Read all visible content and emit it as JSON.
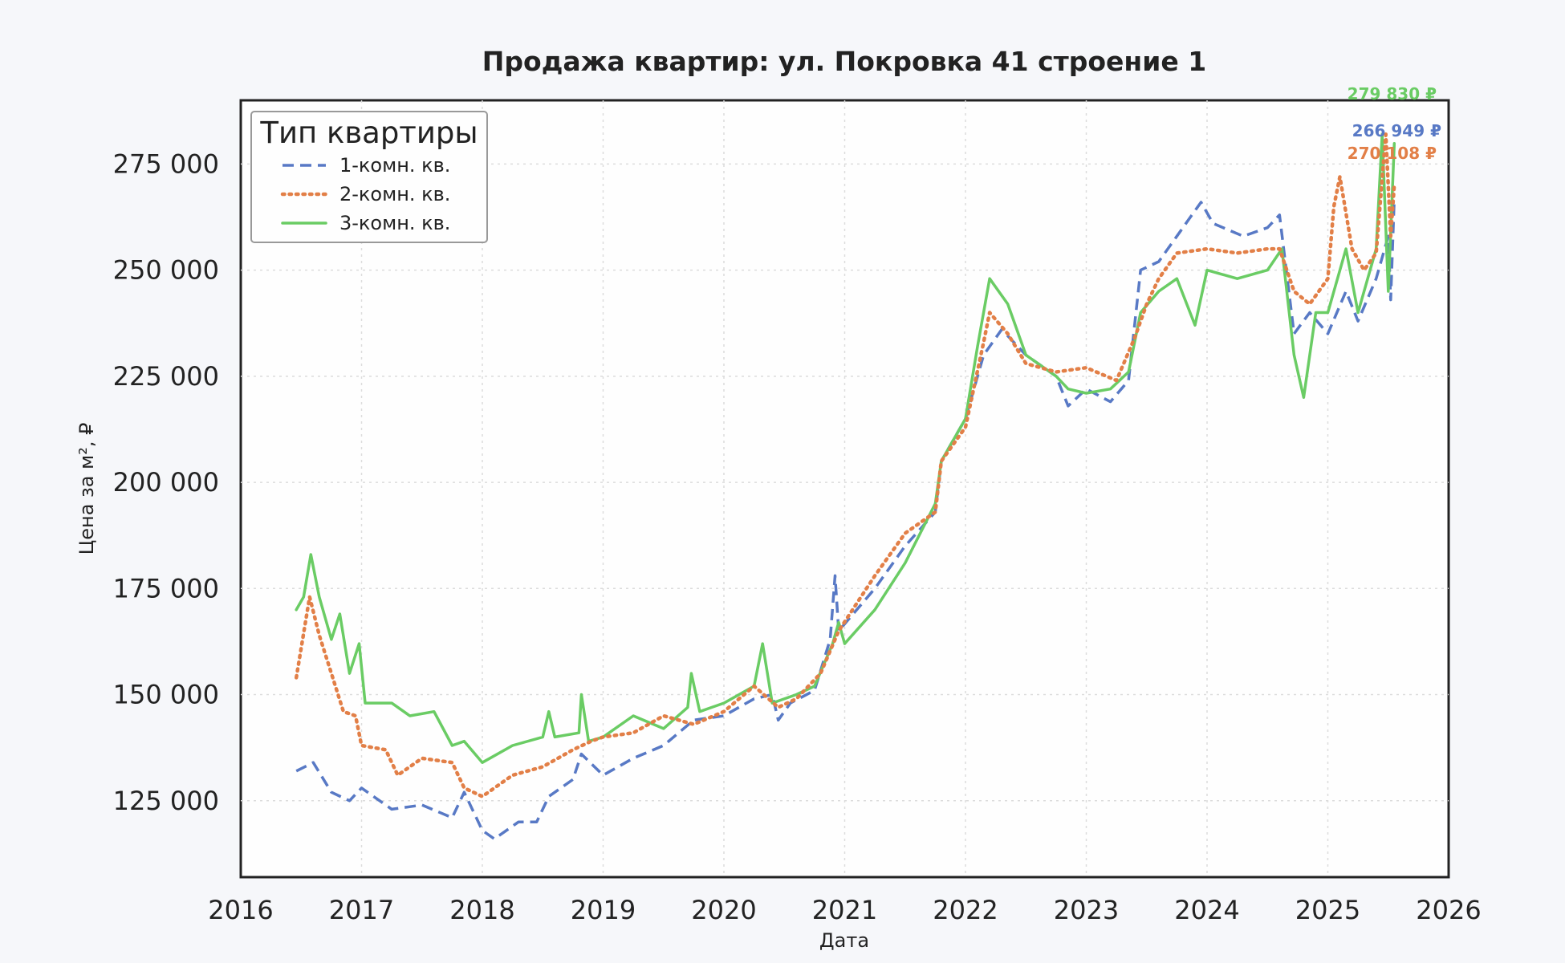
{
  "chart_data": {
    "type": "line",
    "title": "Продажа квартир: ул. Покровка 41 строение 1",
    "xlabel": "Дата",
    "ylabel": "Цена за м², ₽",
    "xlim": [
      2016,
      2026
    ],
    "ylim": [
      107000,
      290000
    ],
    "xticks": [
      2016,
      2017,
      2018,
      2019,
      2020,
      2021,
      2022,
      2023,
      2024,
      2025,
      2026
    ],
    "xtick_labels": [
      "2016",
      "2017",
      "2018",
      "2019",
      "2020",
      "2021",
      "2022",
      "2023",
      "2024",
      "2025",
      "2026"
    ],
    "yticks": [
      125000,
      150000,
      175000,
      200000,
      225000,
      250000,
      275000
    ],
    "ytick_labels": [
      "125 000",
      "150 000",
      "175 000",
      "200 000",
      "225 000",
      "250 000",
      "275 000"
    ],
    "grid": true,
    "legend": {
      "title": "Тип квартиры",
      "position": "top-left"
    },
    "series": [
      {
        "name": "1-комн. кв.",
        "color": "#5879c5",
        "style": "dashed",
        "end_label": "266 949 ₽",
        "points": [
          [
            2016.46,
            132000
          ],
          [
            2016.6,
            134000
          ],
          [
            2016.75,
            127000
          ],
          [
            2016.9,
            125000
          ],
          [
            2017.0,
            128000
          ],
          [
            2017.25,
            123000
          ],
          [
            2017.5,
            124000
          ],
          [
            2017.75,
            121000
          ],
          [
            2017.85,
            127000
          ],
          [
            2018.0,
            118000
          ],
          [
            2018.1,
            116000
          ],
          [
            2018.3,
            120000
          ],
          [
            2018.45,
            120000
          ],
          [
            2018.55,
            126000
          ],
          [
            2018.75,
            130000
          ],
          [
            2018.82,
            136000
          ],
          [
            2019.0,
            131000
          ],
          [
            2019.25,
            135000
          ],
          [
            2019.5,
            138000
          ],
          [
            2019.75,
            144000
          ],
          [
            2020.0,
            145000
          ],
          [
            2020.25,
            149000
          ],
          [
            2020.4,
            150000
          ],
          [
            2020.45,
            144000
          ],
          [
            2020.55,
            148000
          ],
          [
            2020.75,
            151000
          ],
          [
            2020.88,
            163000
          ],
          [
            2020.92,
            178000
          ],
          [
            2020.95,
            165000
          ],
          [
            2021.25,
            175000
          ],
          [
            2021.5,
            185000
          ],
          [
            2021.75,
            193000
          ],
          [
            2021.8,
            205000
          ],
          [
            2022.0,
            215000
          ],
          [
            2022.15,
            230000
          ],
          [
            2022.3,
            236000
          ],
          [
            2022.5,
            230000
          ],
          [
            2022.75,
            225000
          ],
          [
            2022.85,
            218000
          ],
          [
            2023.0,
            222000
          ],
          [
            2023.2,
            219000
          ],
          [
            2023.35,
            224000
          ],
          [
            2023.45,
            250000
          ],
          [
            2023.6,
            252000
          ],
          [
            2023.75,
            258000
          ],
          [
            2023.85,
            262000
          ],
          [
            2023.95,
            266000
          ],
          [
            2024.05,
            261000
          ],
          [
            2024.3,
            258000
          ],
          [
            2024.5,
            260000
          ],
          [
            2024.6,
            263000
          ],
          [
            2024.72,
            235000
          ],
          [
            2024.85,
            240000
          ],
          [
            2025.0,
            235000
          ],
          [
            2025.15,
            245000
          ],
          [
            2025.25,
            238000
          ],
          [
            2025.4,
            248000
          ],
          [
            2025.5,
            258000
          ],
          [
            2025.52,
            243000
          ],
          [
            2025.55,
            266949
          ]
        ]
      },
      {
        "name": "2-комн. кв.",
        "color": "#e27f47",
        "style": "dotted",
        "end_label": "270 108 ₽",
        "points": [
          [
            2016.46,
            154000
          ],
          [
            2016.5,
            161000
          ],
          [
            2016.57,
            173000
          ],
          [
            2016.65,
            164000
          ],
          [
            2016.75,
            155000
          ],
          [
            2016.85,
            146000
          ],
          [
            2016.95,
            145000
          ],
          [
            2017.0,
            138000
          ],
          [
            2017.2,
            137000
          ],
          [
            2017.3,
            131000
          ],
          [
            2017.5,
            135000
          ],
          [
            2017.75,
            134000
          ],
          [
            2017.85,
            128000
          ],
          [
            2018.0,
            126000
          ],
          [
            2018.25,
            131000
          ],
          [
            2018.5,
            133000
          ],
          [
            2018.75,
            137000
          ],
          [
            2018.9,
            139000
          ],
          [
            2019.0,
            140000
          ],
          [
            2019.25,
            141000
          ],
          [
            2019.5,
            145000
          ],
          [
            2019.75,
            143000
          ],
          [
            2020.0,
            146000
          ],
          [
            2020.25,
            152000
          ],
          [
            2020.45,
            147000
          ],
          [
            2020.6,
            149000
          ],
          [
            2020.8,
            155000
          ],
          [
            2020.95,
            165000
          ],
          [
            2021.25,
            178000
          ],
          [
            2021.5,
            188000
          ],
          [
            2021.75,
            193000
          ],
          [
            2021.8,
            205000
          ],
          [
            2022.0,
            213000
          ],
          [
            2022.15,
            233000
          ],
          [
            2022.2,
            240000
          ],
          [
            2022.35,
            235000
          ],
          [
            2022.5,
            228000
          ],
          [
            2022.75,
            226000
          ],
          [
            2023.0,
            227000
          ],
          [
            2023.25,
            224000
          ],
          [
            2023.4,
            234000
          ],
          [
            2023.5,
            242000
          ],
          [
            2023.6,
            248000
          ],
          [
            2023.75,
            254000
          ],
          [
            2024.0,
            255000
          ],
          [
            2024.25,
            254000
          ],
          [
            2024.5,
            255000
          ],
          [
            2024.6,
            255000
          ],
          [
            2024.72,
            245000
          ],
          [
            2024.85,
            242000
          ],
          [
            2025.0,
            248000
          ],
          [
            2025.05,
            265000
          ],
          [
            2025.1,
            272000
          ],
          [
            2025.2,
            255000
          ],
          [
            2025.3,
            250000
          ],
          [
            2025.4,
            254000
          ],
          [
            2025.48,
            282000
          ],
          [
            2025.52,
            258000
          ],
          [
            2025.55,
            270108
          ]
        ]
      },
      {
        "name": "3-комн. кв.",
        "color": "#6acc64",
        "style": "solid",
        "end_label": "279 830 ₽",
        "points": [
          [
            2016.46,
            170000
          ],
          [
            2016.52,
            173000
          ],
          [
            2016.58,
            183000
          ],
          [
            2016.65,
            173000
          ],
          [
            2016.75,
            163000
          ],
          [
            2016.82,
            169000
          ],
          [
            2016.9,
            155000
          ],
          [
            2016.98,
            162000
          ],
          [
            2017.03,
            148000
          ],
          [
            2017.25,
            148000
          ],
          [
            2017.4,
            145000
          ],
          [
            2017.6,
            146000
          ],
          [
            2017.75,
            138000
          ],
          [
            2017.85,
            139000
          ],
          [
            2018.0,
            134000
          ],
          [
            2018.25,
            138000
          ],
          [
            2018.5,
            140000
          ],
          [
            2018.55,
            146000
          ],
          [
            2018.6,
            140000
          ],
          [
            2018.8,
            141000
          ],
          [
            2018.82,
            150000
          ],
          [
            2018.88,
            139000
          ],
          [
            2019.0,
            140000
          ],
          [
            2019.25,
            145000
          ],
          [
            2019.5,
            142000
          ],
          [
            2019.7,
            147000
          ],
          [
            2019.73,
            155000
          ],
          [
            2019.8,
            146000
          ],
          [
            2020.0,
            148000
          ],
          [
            2020.25,
            152000
          ],
          [
            2020.32,
            162000
          ],
          [
            2020.4,
            148000
          ],
          [
            2020.6,
            150000
          ],
          [
            2020.75,
            152000
          ],
          [
            2020.9,
            162000
          ],
          [
            2020.95,
            167000
          ],
          [
            2021.0,
            162000
          ],
          [
            2021.25,
            170000
          ],
          [
            2021.5,
            181000
          ],
          [
            2021.75,
            195000
          ],
          [
            2021.8,
            205000
          ],
          [
            2022.0,
            215000
          ],
          [
            2022.1,
            232000
          ],
          [
            2022.2,
            248000
          ],
          [
            2022.35,
            242000
          ],
          [
            2022.5,
            230000
          ],
          [
            2022.75,
            225000
          ],
          [
            2022.85,
            222000
          ],
          [
            2023.0,
            221000
          ],
          [
            2023.2,
            222000
          ],
          [
            2023.35,
            226000
          ],
          [
            2023.45,
            240000
          ],
          [
            2023.6,
            245000
          ],
          [
            2023.75,
            248000
          ],
          [
            2023.9,
            237000
          ],
          [
            2024.0,
            250000
          ],
          [
            2024.25,
            248000
          ],
          [
            2024.5,
            250000
          ],
          [
            2024.62,
            255000
          ],
          [
            2024.72,
            230000
          ],
          [
            2024.8,
            220000
          ],
          [
            2024.9,
            240000
          ],
          [
            2025.0,
            240000
          ],
          [
            2025.15,
            255000
          ],
          [
            2025.25,
            240000
          ],
          [
            2025.4,
            255000
          ],
          [
            2025.45,
            282000
          ],
          [
            2025.5,
            245000
          ],
          [
            2025.55,
            279830
          ]
        ]
      }
    ]
  }
}
